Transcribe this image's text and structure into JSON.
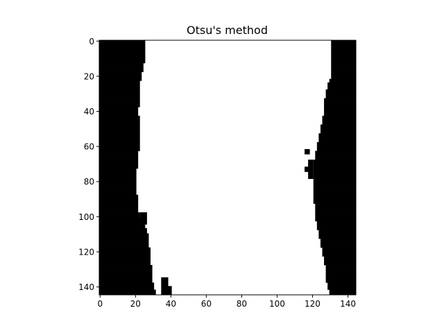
{
  "chart_data": {
    "type": "heatmap",
    "title": "Otsu's method",
    "xlabel": "",
    "ylabel": "",
    "image_size": [
      145,
      145
    ],
    "colormap": {
      "foreground": "#000000",
      "background": "#ffffff"
    },
    "xlim": [
      -0.5,
      144.5
    ],
    "ylim": [
      144.5,
      -0.5
    ],
    "x_ticks": [
      0,
      20,
      40,
      60,
      80,
      100,
      120,
      140
    ],
    "y_ticks": [
      0,
      20,
      40,
      60,
      80,
      100,
      120,
      140
    ],
    "x_tick_labels": [
      "0",
      "20",
      "40",
      "60",
      "80",
      "100",
      "120",
      "140"
    ],
    "y_tick_labels": [
      "0",
      "20",
      "40",
      "60",
      "80",
      "100",
      "120",
      "140"
    ],
    "grid": false,
    "left_region_right_edge": [
      [
        0,
        25
      ],
      [
        10,
        25
      ],
      [
        15,
        24
      ],
      [
        20,
        23
      ],
      [
        25,
        22
      ],
      [
        30,
        22
      ],
      [
        35,
        22
      ],
      [
        40,
        21
      ],
      [
        45,
        22
      ],
      [
        50,
        22
      ],
      [
        55,
        22
      ],
      [
        60,
        22
      ],
      [
        65,
        21
      ],
      [
        70,
        21
      ],
      [
        75,
        20
      ],
      [
        80,
        20
      ],
      [
        85,
        20
      ],
      [
        90,
        21
      ],
      [
        95,
        21
      ],
      [
        100,
        22
      ],
      [
        104,
        24
      ],
      [
        108,
        26
      ],
      [
        112,
        27
      ],
      [
        116,
        27
      ],
      [
        120,
        28
      ],
      [
        125,
        28
      ],
      [
        130,
        29
      ],
      [
        135,
        29
      ],
      [
        140,
        30
      ],
      [
        144,
        31
      ]
    ],
    "right_region_left_edge": [
      [
        0,
        131
      ],
      [
        10,
        131
      ],
      [
        20,
        131
      ],
      [
        25,
        129
      ],
      [
        30,
        128
      ],
      [
        35,
        127
      ],
      [
        40,
        127
      ],
      [
        45,
        126
      ],
      [
        50,
        125
      ],
      [
        55,
        124
      ],
      [
        60,
        123
      ],
      [
        65,
        122
      ],
      [
        70,
        121
      ],
      [
        75,
        121
      ],
      [
        80,
        121
      ],
      [
        85,
        121
      ],
      [
        90,
        121
      ],
      [
        95,
        122
      ],
      [
        100,
        122
      ],
      [
        105,
        123
      ],
      [
        110,
        124
      ],
      [
        115,
        125
      ],
      [
        120,
        126
      ],
      [
        125,
        127
      ],
      [
        130,
        128
      ],
      [
        135,
        128
      ],
      [
        140,
        129
      ],
      [
        144,
        130
      ]
    ],
    "small_blobs": [
      {
        "y0": 135,
        "y1": 144,
        "x0": 35,
        "x1": 38
      },
      {
        "y0": 140,
        "y1": 144,
        "x0": 38,
        "x1": 40
      },
      {
        "y0": 98,
        "y1": 104,
        "x0": 23,
        "x1": 26
      },
      {
        "y0": 68,
        "y1": 78,
        "x0": 118,
        "x1": 120
      },
      {
        "y0": 62,
        "y1": 64,
        "x0": 116,
        "x1": 118
      },
      {
        "y0": 72,
        "y1": 74,
        "x0": 116,
        "x1": 118
      }
    ]
  }
}
